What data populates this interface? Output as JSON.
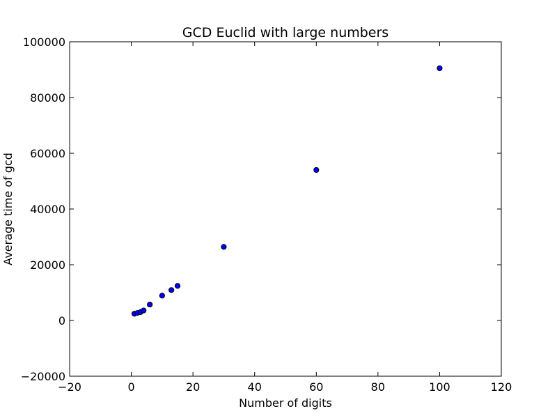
{
  "chart_data": {
    "type": "scatter",
    "title": "GCD Euclid with large numbers",
    "xlabel": "Number of digits",
    "ylabel": "Average time of gcd",
    "xlim": [
      -20,
      120
    ],
    "ylim": [
      -20000,
      100000
    ],
    "xticks": [
      -20,
      0,
      20,
      40,
      60,
      80,
      100,
      120
    ],
    "yticks": [
      -20000,
      0,
      20000,
      40000,
      60000,
      80000,
      100000
    ],
    "xtick_labels": [
      "−20",
      "0",
      "20",
      "40",
      "60",
      "80",
      "100",
      "120"
    ],
    "ytick_labels": [
      "−20000",
      "0",
      "20000",
      "40000",
      "60000",
      "80000",
      "100000"
    ],
    "grid": false,
    "legend": "none",
    "marker_color": "#0000ff",
    "x": [
      1,
      2,
      3,
      4,
      6,
      10,
      13,
      15,
      30,
      60,
      100
    ],
    "y": [
      2400,
      2700,
      3000,
      3600,
      5700,
      8900,
      10900,
      12400,
      26400,
      54000,
      90500
    ]
  }
}
